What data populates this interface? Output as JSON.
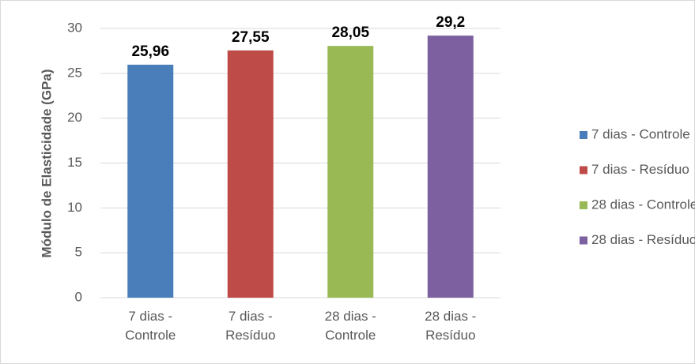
{
  "chart_data": {
    "type": "bar",
    "y_label": "Módulo de Elasticidade (GPa)",
    "categories": [
      "7 dias - Controle",
      "7 dias - Resíduo",
      "28 dias - Controle",
      "28 dias - Resíduo"
    ],
    "values": [
      25.96,
      27.55,
      28.05,
      29.2
    ],
    "value_labels": [
      "25,96",
      "27,55",
      "28,05",
      "29,2"
    ],
    "colors": [
      "#4a7ebb",
      "#be4b48",
      "#98b954",
      "#7d60a0"
    ],
    "ylim": [
      0,
      30
    ],
    "yticks": [
      0,
      5,
      10,
      15,
      20,
      25,
      30
    ],
    "grid": true,
    "legend": "right"
  }
}
